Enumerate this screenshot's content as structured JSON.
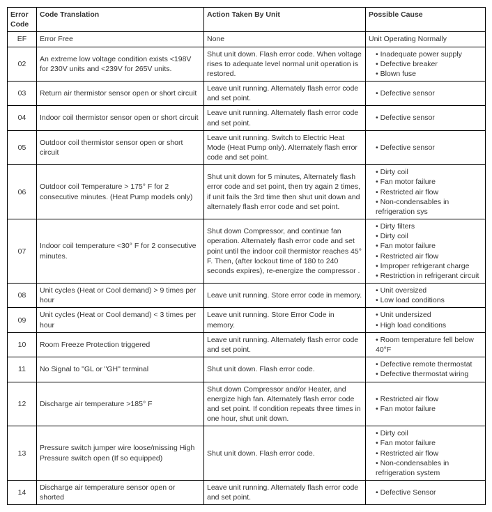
{
  "table": {
    "headers": {
      "code": "Error Code",
      "translation": "Code Translation",
      "action": "Action Taken By Unit",
      "cause": "Possible Cause"
    },
    "rows": [
      {
        "code": "EF",
        "translation": "Error Free",
        "action": "None",
        "cause_plain": "Unit Operating Normally"
      },
      {
        "code": "02",
        "translation": "An extreme low voltage condition exists <198V for 230V units and <239V for 265V units.",
        "action": "Shut unit down. Flash error code.        When voltage rises to adequate level normal unit operation is restored.",
        "causes": [
          "Inadequate power supply",
          "Defective breaker",
          "Blown fuse"
        ]
      },
      {
        "code": "03",
        "translation": "Return air thermistor sensor open or short circuit",
        "action": "Leave unit running.  Alternately flash error code and set point.",
        "causes": [
          "Defective sensor"
        ]
      },
      {
        "code": "04",
        "translation": "Indoor coil thermistor sensor open or short circuit",
        "action": "Leave unit running.  Alternately flash error code and set point.",
        "causes": [
          "Defective sensor"
        ]
      },
      {
        "code": "05",
        "translation": "Outdoor coil thermistor sensor open or short circuit",
        "action": "Leave unit running.  Switch to Electric Heat Mode (Heat Pump only).  Alternately flash error code and set point.",
        "causes": [
          "Defective sensor"
        ]
      },
      {
        "code": "06",
        "translation": "Outdoor coil Temperature > 175° F for 2 consecutive minutes. (Heat Pump models only)",
        "action": "Shut unit down for 5 minutes, Alternately flash error code and set point, then try again 2 times, if unit fails the 3rd time then shut unit down and alternately flash error code and set point.",
        "causes": [
          "Dirty coil",
          "Fan motor failure",
          "Restricted air flow",
          "Non-condensables in refrigeration sys"
        ]
      },
      {
        "code": "07",
        "translation": "Indoor coil temperature <30° F for 2 consecutive minutes.",
        "action": "Shut down Compressor, and continue fan operation.  Alternately flash error code and set point until the indoor coil thermistor reaches 45° F. Then, (after lockout time of 180 to 240 seconds expires), re-energize the compressor  .",
        "causes": [
          "Dirty filters",
          "Dirty coil",
          "Fan motor failure",
          "Restricted air flow",
          "Improper refrigerant charge",
          "Restriction in refrigerant circuit"
        ]
      },
      {
        "code": "08",
        "translation": "Unit cycles (Heat or Cool demand) > 9 times per hour",
        "action": "Leave unit running.  Store error code in memory.",
        "causes": [
          "Unit oversized",
          "Low load conditions"
        ]
      },
      {
        "code": "09",
        "translation": "Unit cycles (Heat or Cool demand) < 3 times per hour",
        "action": "Leave unit running.  Store Error Code in memory.",
        "causes": [
          "Unit undersized",
          "High load conditions"
        ]
      },
      {
        "code": "10",
        "translation": "Room Freeze Protection triggered",
        "action": "Leave unit running. Alternately flash error code and set point.",
        "causes": [
          "Room temperature fell below 40°F"
        ]
      },
      {
        "code": "11",
        "translation": "No Signal to \"GL or \"GH\" terminal",
        "action": "Shut unit down. Flash error code.",
        "causes": [
          "Defective remote thermostat",
          "Defective thermostat wiring"
        ]
      },
      {
        "code": "12",
        "translation": "Discharge air temperature >185° F",
        "action": "Shut down Compressor and/or Heater, and energize high fan. Alternately flash error code and set point.  If condition repeats three times in one hour, shut unit down.",
        "causes": [
          "Restricted air flow",
          "Fan motor failure"
        ]
      },
      {
        "code": "13",
        "translation": "Pressure switch jumper wire loose/missing High Pressure switch open (If so equipped)",
        "action": "Shut unit down. Flash error code.",
        "causes": [
          "Dirty coil",
          "Fan motor failure",
          "Restricted air flow",
          "Non-condensables in refrigeration system"
        ]
      },
      {
        "code": "14",
        "translation": "Discharge air temperature sensor open or shorted",
        "action": "Leave unit running.  Alternately flash error code and set point.",
        "causes": [
          "Defective Sensor"
        ]
      }
    ]
  }
}
